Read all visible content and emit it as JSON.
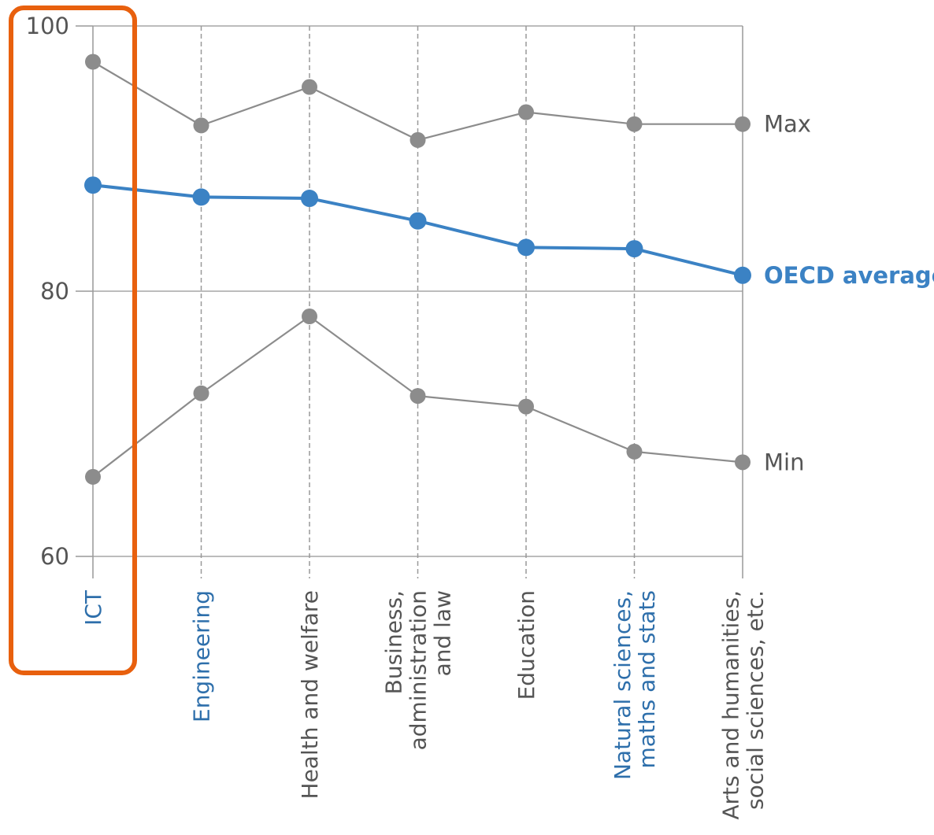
{
  "chart_data": {
    "type": "line",
    "categories": [
      "ICT",
      "Engineering",
      "Health and welfare",
      "Business, administration and law",
      "Education",
      "Natural sciences, maths and stats",
      "Arts and humanities, social sciences, etc."
    ],
    "category_lines": [
      [
        "ICT"
      ],
      [
        "Engineering"
      ],
      [
        "Health and welfare"
      ],
      [
        "Business,",
        "administration",
        "and law"
      ],
      [
        "Education"
      ],
      [
        "Natural sciences,",
        "maths and stats"
      ],
      [
        "Arts and humanities,",
        "social sciences, etc."
      ]
    ],
    "highlighted_categories": [
      "ICT",
      "Engineering",
      "Natural sciences, maths and stats"
    ],
    "boxed_category": "ICT",
    "series": [
      {
        "name": "Max",
        "values": [
          97.3,
          92.5,
          95.4,
          91.4,
          93.5,
          92.6,
          92.6
        ],
        "color": "#8c8c8c"
      },
      {
        "name": "OECD average",
        "values": [
          88.0,
          87.1,
          87.0,
          85.3,
          83.3,
          83.2,
          81.2
        ],
        "color": "#3b82c4"
      },
      {
        "name": "Min",
        "values": [
          66.0,
          72.3,
          78.1,
          72.1,
          71.3,
          67.9,
          67.1
        ],
        "color": "#8c8c8c"
      }
    ],
    "yticks": [
      60,
      80,
      100
    ],
    "ylim": [
      60,
      100
    ],
    "grid": true,
    "colors": {
      "highlight": "#2e6fab",
      "text": "#555555",
      "axis": "#999999",
      "box": "#e8600e"
    }
  }
}
